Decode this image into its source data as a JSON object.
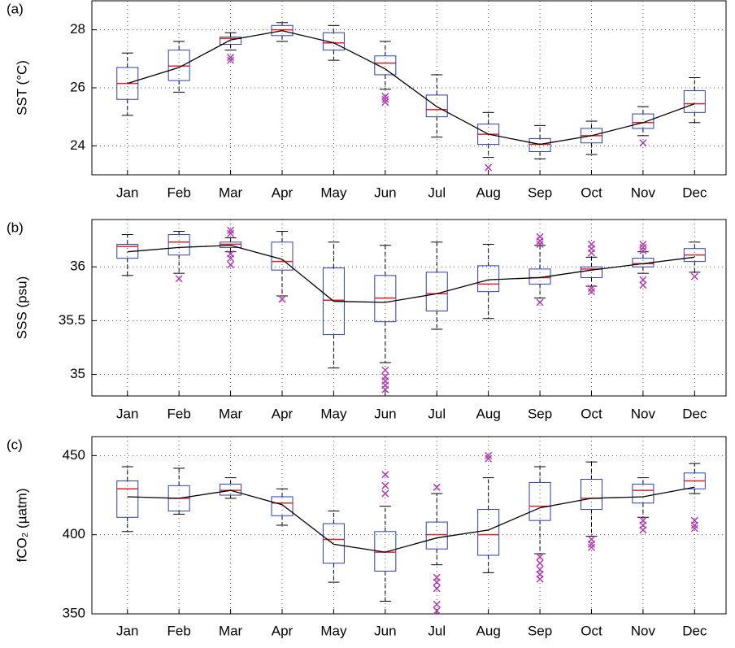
{
  "chart_data": [
    {
      "type": "box",
      "panel_label": "(a)",
      "ylabel": "SST (°C)",
      "categories": [
        "Jan",
        "Feb",
        "Mar",
        "Apr",
        "May",
        "Jun",
        "Jul",
        "Aug",
        "Sep",
        "Oct",
        "Nov",
        "Dec"
      ],
      "ylim": [
        23,
        29
      ],
      "yticks": [
        24,
        26,
        28
      ],
      "grid": true,
      "box_color": "#2a3fb0",
      "median_color": "#e0202a",
      "outlier_color": "#b23cb4",
      "line_color": "#000000",
      "boxes": [
        {
          "low": 25.05,
          "q1": 25.6,
          "median": 26.15,
          "q3": 26.7,
          "high": 27.2,
          "outliers": []
        },
        {
          "low": 25.85,
          "q1": 26.25,
          "median": 26.75,
          "q3": 27.3,
          "high": 27.6,
          "outliers": []
        },
        {
          "low": 27.3,
          "q1": 27.5,
          "median": 27.7,
          "q3": 27.75,
          "high": 27.9,
          "outliers": [
            27.05,
            26.95
          ]
        },
        {
          "low": 27.6,
          "q1": 27.8,
          "median": 28.0,
          "q3": 28.15,
          "high": 28.25,
          "outliers": []
        },
        {
          "low": 26.95,
          "q1": 27.3,
          "median": 27.55,
          "q3": 27.9,
          "high": 28.15,
          "outliers": []
        },
        {
          "low": 25.95,
          "q1": 26.45,
          "median": 26.85,
          "q3": 27.1,
          "high": 27.6,
          "outliers": [
            25.7,
            25.6,
            25.5
          ]
        },
        {
          "low": 24.3,
          "q1": 25.0,
          "median": 25.25,
          "q3": 25.75,
          "high": 26.45,
          "outliers": []
        },
        {
          "low": 23.6,
          "q1": 24.05,
          "median": 24.4,
          "q3": 24.75,
          "high": 25.15,
          "outliers": [
            23.25
          ]
        },
        {
          "low": 23.55,
          "q1": 23.8,
          "median": 24.05,
          "q3": 24.25,
          "high": 24.7,
          "outliers": []
        },
        {
          "low": 23.7,
          "q1": 24.1,
          "median": 24.35,
          "q3": 24.6,
          "high": 24.85,
          "outliers": []
        },
        {
          "low": 24.35,
          "q1": 24.6,
          "median": 24.8,
          "q3": 25.1,
          "high": 25.35,
          "outliers": [
            24.1
          ]
        },
        {
          "low": 24.8,
          "q1": 25.15,
          "median": 25.45,
          "q3": 25.9,
          "high": 26.35,
          "outliers": []
        }
      ],
      "mean": [
        26.15,
        26.7,
        27.65,
        27.97,
        27.55,
        26.65,
        25.35,
        24.4,
        24.05,
        24.35,
        24.8,
        25.45
      ]
    },
    {
      "type": "box",
      "panel_label": "(b)",
      "ylabel": "SSS (psu)",
      "categories": [
        "Jan",
        "Feb",
        "Mar",
        "Apr",
        "May",
        "Jun",
        "Jul",
        "Aug",
        "Sep",
        "Oct",
        "Nov",
        "Dec"
      ],
      "ylim": [
        34.8,
        36.44
      ],
      "yticks": [
        35,
        35.5,
        36
      ],
      "grid": true,
      "box_color": "#2a3fb0",
      "median_color": "#e0202a",
      "outlier_color": "#b23cb4",
      "line_color": "#000000",
      "boxes": [
        {
          "low": 35.92,
          "q1": 36.08,
          "median": 36.19,
          "q3": 36.21,
          "high": 36.3,
          "outliers": []
        },
        {
          "low": 35.94,
          "q1": 36.11,
          "median": 36.23,
          "q3": 36.3,
          "high": 36.33,
          "outliers": [
            35.89
          ]
        },
        {
          "low": 36.14,
          "q1": 36.18,
          "median": 36.21,
          "q3": 36.23,
          "high": 36.27,
          "outliers": [
            36.34,
            36.31,
            36.12,
            36.08,
            36.02
          ]
        },
        {
          "low": 35.73,
          "q1": 35.97,
          "median": 36.05,
          "q3": 36.23,
          "high": 36.33,
          "outliers": [
            35.7
          ]
        },
        {
          "low": 35.06,
          "q1": 35.37,
          "median": 35.69,
          "q3": 35.99,
          "high": 36.23,
          "outliers": []
        },
        {
          "low": 35.11,
          "q1": 35.49,
          "median": 35.71,
          "q3": 35.92,
          "high": 36.2,
          "outliers": [
            35.04,
            34.98,
            34.94,
            34.9,
            34.86
          ]
        },
        {
          "low": 35.42,
          "q1": 35.59,
          "median": 35.75,
          "q3": 35.95,
          "high": 36.23,
          "outliers": []
        },
        {
          "low": 35.52,
          "q1": 35.77,
          "median": 35.84,
          "q3": 36.01,
          "high": 36.21,
          "outliers": []
        },
        {
          "low": 35.71,
          "q1": 35.84,
          "median": 35.9,
          "q3": 35.98,
          "high": 36.2,
          "outliers": [
            36.28,
            36.24,
            36.21,
            35.67
          ]
        },
        {
          "low": 35.82,
          "q1": 35.9,
          "median": 35.98,
          "q3": 36.0,
          "high": 36.09,
          "outliers": [
            36.21,
            36.17,
            36.13,
            35.8,
            35.77
          ]
        },
        {
          "low": 35.94,
          "q1": 36.0,
          "median": 36.03,
          "q3": 36.08,
          "high": 36.14,
          "outliers": [
            36.21,
            36.18,
            36.15,
            35.88,
            35.83
          ]
        },
        {
          "low": 35.95,
          "q1": 36.05,
          "median": 36.11,
          "q3": 36.17,
          "high": 36.23,
          "outliers": [
            35.91
          ]
        }
      ],
      "mean": [
        36.14,
        36.18,
        36.2,
        36.07,
        35.68,
        35.67,
        35.75,
        35.88,
        35.9,
        35.97,
        36.03,
        36.09
      ]
    },
    {
      "type": "box",
      "panel_label": "(c)",
      "ylabel": "fCO₂ (µatm)",
      "categories": [
        "Jan",
        "Feb",
        "Mar",
        "Apr",
        "May",
        "Jun",
        "Jul",
        "Aug",
        "Sep",
        "Oct",
        "Nov",
        "Dec"
      ],
      "ylim": [
        350,
        462
      ],
      "yticks": [
        350,
        400,
        450
      ],
      "grid": true,
      "box_color": "#2a3fb0",
      "median_color": "#e0202a",
      "outlier_color": "#b23cb4",
      "line_color": "#000000",
      "boxes": [
        {
          "low": 402,
          "q1": 411,
          "median": 429,
          "q3": 434,
          "high": 443,
          "outliers": []
        },
        {
          "low": 413,
          "q1": 415,
          "median": 423,
          "q3": 431,
          "high": 442,
          "outliers": []
        },
        {
          "low": 423,
          "q1": 425,
          "median": 428,
          "q3": 432,
          "high": 436,
          "outliers": []
        },
        {
          "low": 406,
          "q1": 412,
          "median": 420,
          "q3": 424,
          "high": 429,
          "outliers": []
        },
        {
          "low": 370,
          "q1": 382,
          "median": 397,
          "q3": 407,
          "high": 415,
          "outliers": []
        },
        {
          "low": 358,
          "q1": 377,
          "median": 389,
          "q3": 402,
          "high": 418,
          "outliers": [
            438,
            431,
            426
          ]
        },
        {
          "low": 381,
          "q1": 391,
          "median": 400,
          "q3": 408,
          "high": 426,
          "outliers": [
            430,
            373,
            370,
            366,
            356,
            352
          ]
        },
        {
          "low": 376,
          "q1": 387,
          "median": 400,
          "q3": 416,
          "high": 436,
          "outliers": [
            450,
            448
          ]
        },
        {
          "low": 388,
          "q1": 409,
          "median": 418,
          "q3": 433,
          "high": 443,
          "outliers": [
            386,
            382,
            378,
            375,
            372
          ]
        },
        {
          "low": 399,
          "q1": 416,
          "median": 423,
          "q3": 435,
          "high": 446,
          "outliers": [
            397,
            394,
            392
          ]
        },
        {
          "low": 411,
          "q1": 420,
          "median": 428,
          "q3": 432,
          "high": 436,
          "outliers": [
            409,
            406,
            403
          ]
        },
        {
          "low": 426,
          "q1": 429,
          "median": 434,
          "q3": 439,
          "high": 445,
          "outliers": [
            409,
            406,
            404
          ]
        }
      ],
      "mean": [
        424,
        423,
        428,
        419,
        394,
        389,
        398,
        403,
        417,
        423,
        424,
        430
      ]
    }
  ]
}
